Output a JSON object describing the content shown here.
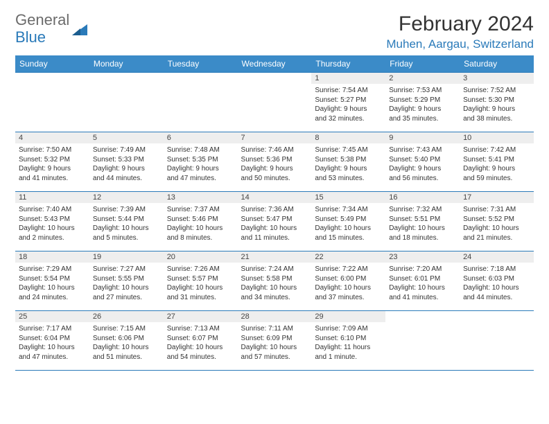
{
  "logo": {
    "text1": "General",
    "text2": "Blue"
  },
  "title": "February 2024",
  "location": "Muhen, Aargau, Switzerland",
  "colors": {
    "header_bg": "#3b8bc8",
    "accent": "#2a7ab9",
    "daynum_bg": "#eeeeee",
    "text": "#333333",
    "logo_gray": "#6b6b6b"
  },
  "day_headers": [
    "Sunday",
    "Monday",
    "Tuesday",
    "Wednesday",
    "Thursday",
    "Friday",
    "Saturday"
  ],
  "weeks": [
    [
      {
        "num": "",
        "lines": []
      },
      {
        "num": "",
        "lines": []
      },
      {
        "num": "",
        "lines": []
      },
      {
        "num": "",
        "lines": []
      },
      {
        "num": "1",
        "lines": [
          "Sunrise: 7:54 AM",
          "Sunset: 5:27 PM",
          "Daylight: 9 hours",
          "and 32 minutes."
        ]
      },
      {
        "num": "2",
        "lines": [
          "Sunrise: 7:53 AM",
          "Sunset: 5:29 PM",
          "Daylight: 9 hours",
          "and 35 minutes."
        ]
      },
      {
        "num": "3",
        "lines": [
          "Sunrise: 7:52 AM",
          "Sunset: 5:30 PM",
          "Daylight: 9 hours",
          "and 38 minutes."
        ]
      }
    ],
    [
      {
        "num": "4",
        "lines": [
          "Sunrise: 7:50 AM",
          "Sunset: 5:32 PM",
          "Daylight: 9 hours",
          "and 41 minutes."
        ]
      },
      {
        "num": "5",
        "lines": [
          "Sunrise: 7:49 AM",
          "Sunset: 5:33 PM",
          "Daylight: 9 hours",
          "and 44 minutes."
        ]
      },
      {
        "num": "6",
        "lines": [
          "Sunrise: 7:48 AM",
          "Sunset: 5:35 PM",
          "Daylight: 9 hours",
          "and 47 minutes."
        ]
      },
      {
        "num": "7",
        "lines": [
          "Sunrise: 7:46 AM",
          "Sunset: 5:36 PM",
          "Daylight: 9 hours",
          "and 50 minutes."
        ]
      },
      {
        "num": "8",
        "lines": [
          "Sunrise: 7:45 AM",
          "Sunset: 5:38 PM",
          "Daylight: 9 hours",
          "and 53 minutes."
        ]
      },
      {
        "num": "9",
        "lines": [
          "Sunrise: 7:43 AM",
          "Sunset: 5:40 PM",
          "Daylight: 9 hours",
          "and 56 minutes."
        ]
      },
      {
        "num": "10",
        "lines": [
          "Sunrise: 7:42 AM",
          "Sunset: 5:41 PM",
          "Daylight: 9 hours",
          "and 59 minutes."
        ]
      }
    ],
    [
      {
        "num": "11",
        "lines": [
          "Sunrise: 7:40 AM",
          "Sunset: 5:43 PM",
          "Daylight: 10 hours",
          "and 2 minutes."
        ]
      },
      {
        "num": "12",
        "lines": [
          "Sunrise: 7:39 AM",
          "Sunset: 5:44 PM",
          "Daylight: 10 hours",
          "and 5 minutes."
        ]
      },
      {
        "num": "13",
        "lines": [
          "Sunrise: 7:37 AM",
          "Sunset: 5:46 PM",
          "Daylight: 10 hours",
          "and 8 minutes."
        ]
      },
      {
        "num": "14",
        "lines": [
          "Sunrise: 7:36 AM",
          "Sunset: 5:47 PM",
          "Daylight: 10 hours",
          "and 11 minutes."
        ]
      },
      {
        "num": "15",
        "lines": [
          "Sunrise: 7:34 AM",
          "Sunset: 5:49 PM",
          "Daylight: 10 hours",
          "and 15 minutes."
        ]
      },
      {
        "num": "16",
        "lines": [
          "Sunrise: 7:32 AM",
          "Sunset: 5:51 PM",
          "Daylight: 10 hours",
          "and 18 minutes."
        ]
      },
      {
        "num": "17",
        "lines": [
          "Sunrise: 7:31 AM",
          "Sunset: 5:52 PM",
          "Daylight: 10 hours",
          "and 21 minutes."
        ]
      }
    ],
    [
      {
        "num": "18",
        "lines": [
          "Sunrise: 7:29 AM",
          "Sunset: 5:54 PM",
          "Daylight: 10 hours",
          "and 24 minutes."
        ]
      },
      {
        "num": "19",
        "lines": [
          "Sunrise: 7:27 AM",
          "Sunset: 5:55 PM",
          "Daylight: 10 hours",
          "and 27 minutes."
        ]
      },
      {
        "num": "20",
        "lines": [
          "Sunrise: 7:26 AM",
          "Sunset: 5:57 PM",
          "Daylight: 10 hours",
          "and 31 minutes."
        ]
      },
      {
        "num": "21",
        "lines": [
          "Sunrise: 7:24 AM",
          "Sunset: 5:58 PM",
          "Daylight: 10 hours",
          "and 34 minutes."
        ]
      },
      {
        "num": "22",
        "lines": [
          "Sunrise: 7:22 AM",
          "Sunset: 6:00 PM",
          "Daylight: 10 hours",
          "and 37 minutes."
        ]
      },
      {
        "num": "23",
        "lines": [
          "Sunrise: 7:20 AM",
          "Sunset: 6:01 PM",
          "Daylight: 10 hours",
          "and 41 minutes."
        ]
      },
      {
        "num": "24",
        "lines": [
          "Sunrise: 7:18 AM",
          "Sunset: 6:03 PM",
          "Daylight: 10 hours",
          "and 44 minutes."
        ]
      }
    ],
    [
      {
        "num": "25",
        "lines": [
          "Sunrise: 7:17 AM",
          "Sunset: 6:04 PM",
          "Daylight: 10 hours",
          "and 47 minutes."
        ]
      },
      {
        "num": "26",
        "lines": [
          "Sunrise: 7:15 AM",
          "Sunset: 6:06 PM",
          "Daylight: 10 hours",
          "and 51 minutes."
        ]
      },
      {
        "num": "27",
        "lines": [
          "Sunrise: 7:13 AM",
          "Sunset: 6:07 PM",
          "Daylight: 10 hours",
          "and 54 minutes."
        ]
      },
      {
        "num": "28",
        "lines": [
          "Sunrise: 7:11 AM",
          "Sunset: 6:09 PM",
          "Daylight: 10 hours",
          "and 57 minutes."
        ]
      },
      {
        "num": "29",
        "lines": [
          "Sunrise: 7:09 AM",
          "Sunset: 6:10 PM",
          "Daylight: 11 hours",
          "and 1 minute."
        ]
      },
      {
        "num": "",
        "lines": []
      },
      {
        "num": "",
        "lines": []
      }
    ]
  ]
}
